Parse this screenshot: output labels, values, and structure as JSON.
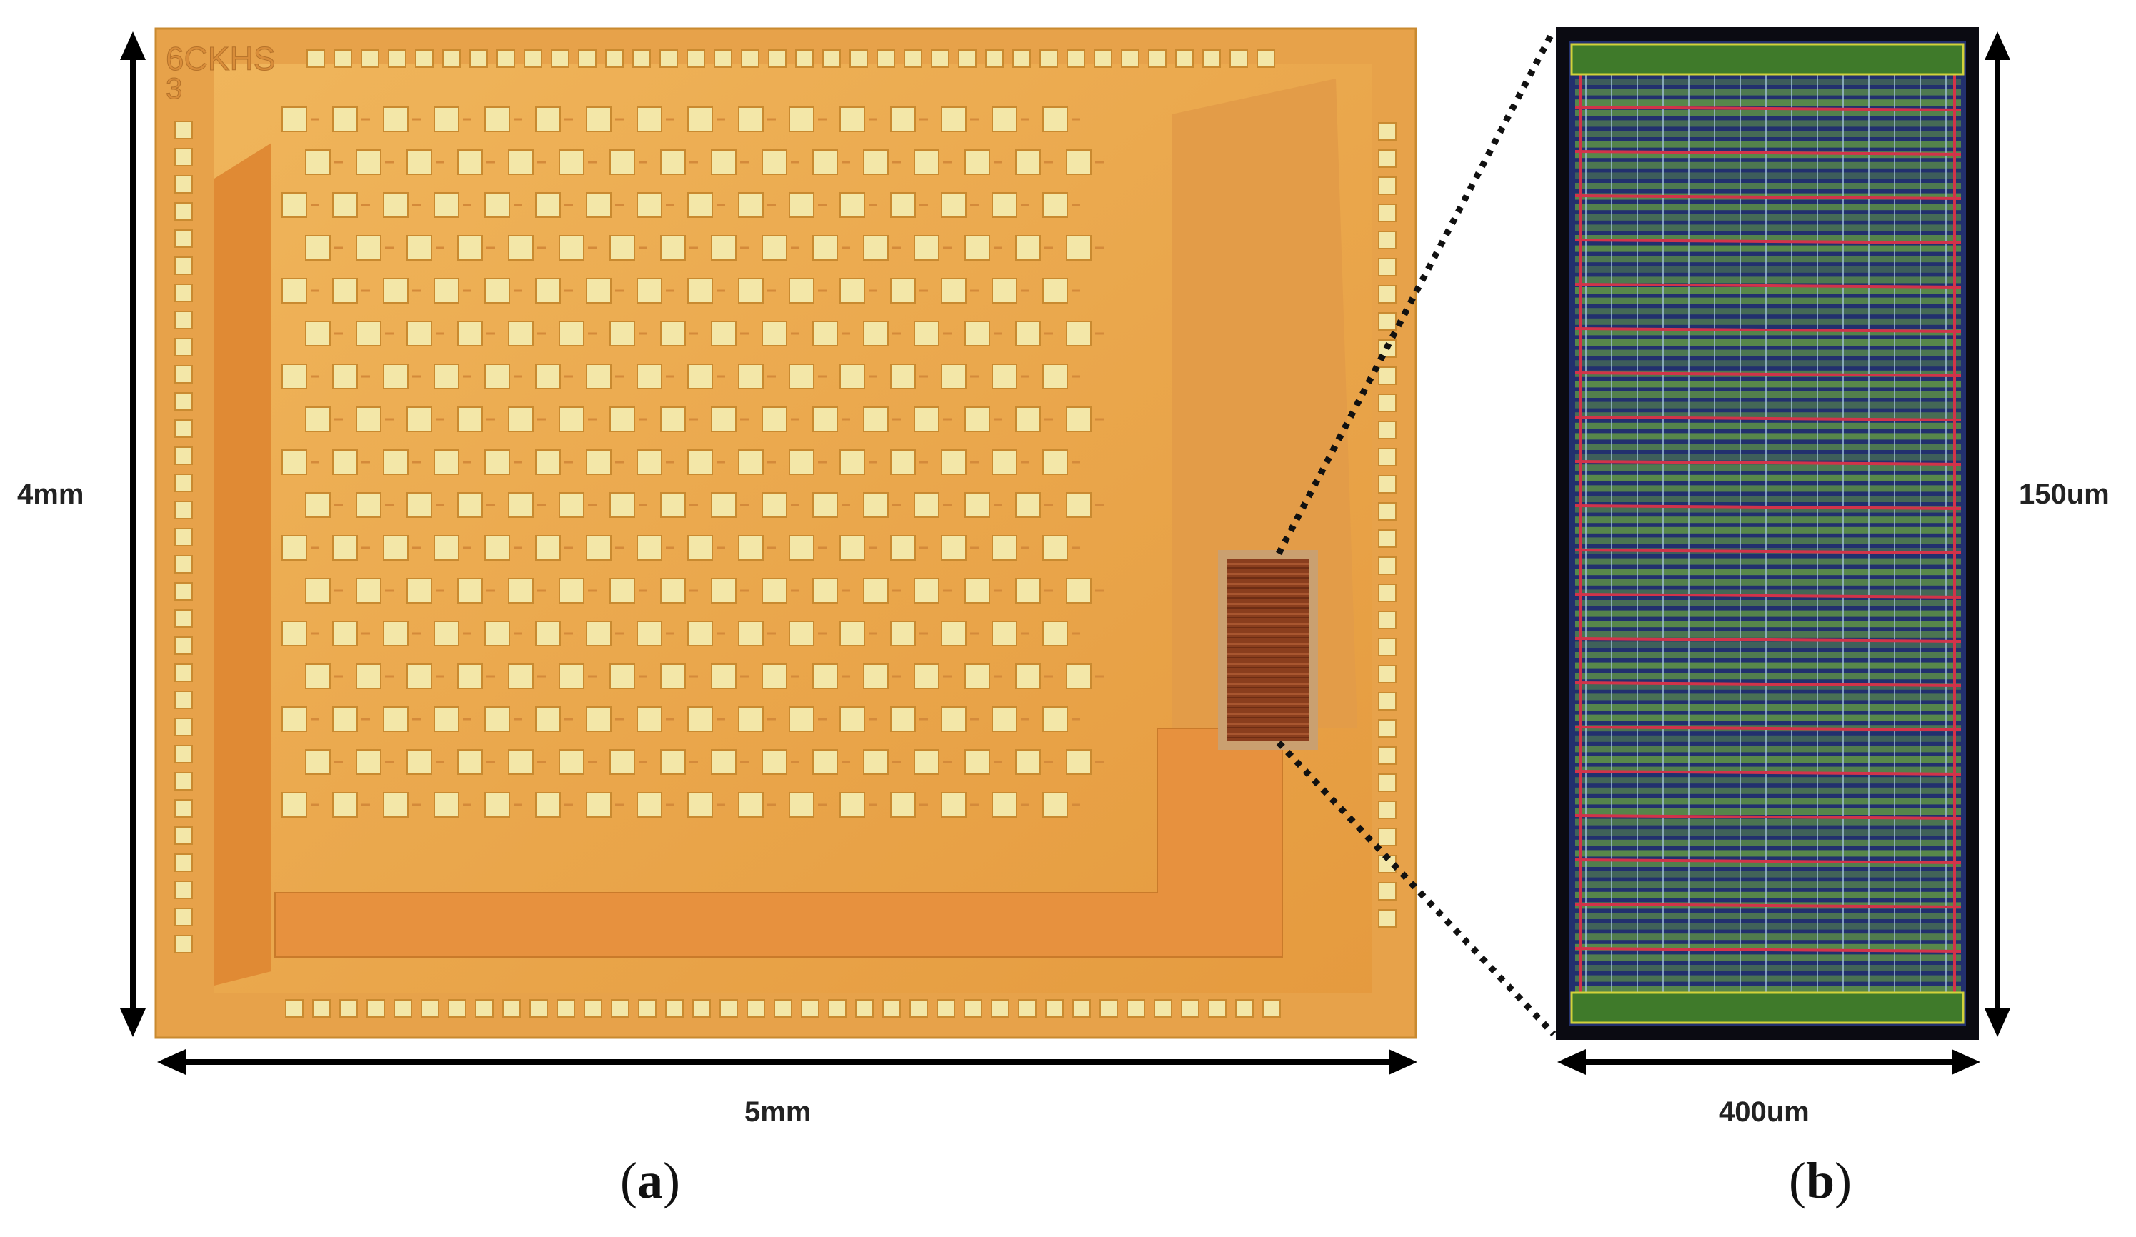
{
  "figure": {
    "chip": {
      "die_marking_line1": "6CKHS",
      "die_marking_line2": "3",
      "width_label": "5mm",
      "height_label": "4mm",
      "panel_prefix": "(",
      "panel_letter": "a",
      "panel_suffix": ")"
    },
    "layout": {
      "width_label": "400um",
      "height_label": "150um",
      "panel_prefix": "(",
      "panel_letter": "b",
      "panel_suffix": ")"
    },
    "colors": {
      "die_base": "#e9a64a",
      "die_inner": "#e89a3c",
      "pad": "#f3e7a8",
      "pad_border": "#c98a30",
      "core_block": "#8a3e1e",
      "layout_bg": "#1e2a6a",
      "layout_green": "#6fae3a",
      "layout_red": "#d2334a",
      "frame": "#111111"
    }
  }
}
